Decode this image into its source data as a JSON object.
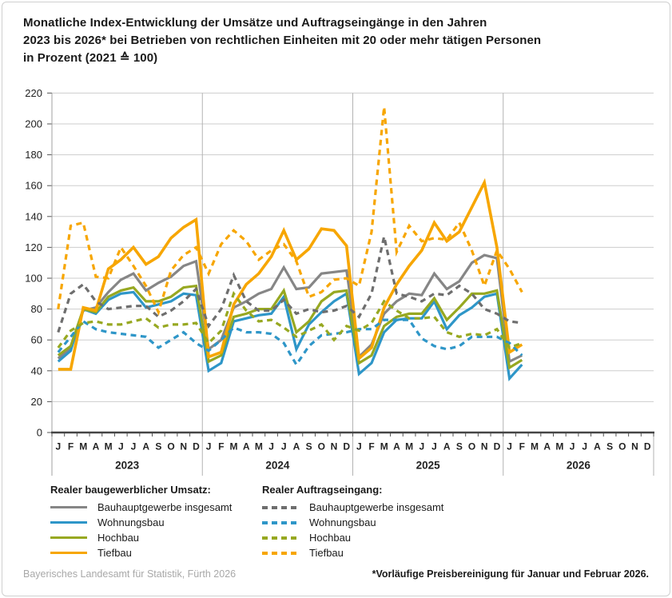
{
  "title": {
    "line1": "Monatliche Index-Entwicklung der Umsätze und Auftragseingänge in den Jahren",
    "line2": "2023 bis 2026* bei Betrieben von rechtlichen Einheiten mit 20 oder mehr tätigen Personen",
    "line3": "in Prozent (2021 ≙ 100)"
  },
  "legend": {
    "umsatz_header": "Realer baugewerblicher Umsatz:",
    "auftrag_header": "Realer Auftragseingang:",
    "items": [
      "Bauhauptgewerbe insgesamt",
      "Wohnungsbau",
      "Hochbau",
      "Tiefbau"
    ]
  },
  "footer": {
    "source": "Bayerisches Landesamt für Statistik, Fürth 2026",
    "footnote": "*Vorläufige Preisbereinigung für Januar und Februar 2026."
  },
  "chart_data": {
    "type": "line",
    "title": "Monatliche Index-Entwicklung der Umsätze und Auftragseingänge 2023 bis 2026, in Prozent (2021 ≙ 100)",
    "index_base": "2021 ≙ 100",
    "grid": "on",
    "y_axis": {
      "min": 0,
      "max": 220,
      "step": 20
    },
    "x_axis": {
      "month_letters": [
        "J",
        "F",
        "M",
        "A",
        "M",
        "J",
        "J",
        "A",
        "S",
        "O",
        "N",
        "D"
      ],
      "years": [
        "2023",
        "2024",
        "2025",
        "2026"
      ],
      "n_data_months": 38,
      "last_data_month": "Februar 2026"
    },
    "colors": {
      "gray": "#868686",
      "blue": "#2E96C8",
      "green": "#97A821",
      "orange": "#F7A600"
    },
    "series": [
      {
        "name": "Bauhauptgewerbe insgesamt",
        "group": "Realer baugewerblicher Umsatz",
        "style": "solid",
        "color": "#868686",
        "values": [
          48,
          55,
          79,
          81,
          91,
          99,
          103,
          92,
          97,
          101,
          108,
          111,
          54,
          60,
          81,
          85,
          90,
          93,
          107,
          93,
          94,
          103,
          104,
          105,
          49,
          57,
          77,
          85,
          90,
          89,
          103,
          93,
          98,
          110,
          115,
          113,
          46,
          50
        ]
      },
      {
        "name": "Wohnungsbau",
        "group": "Realer baugewerblicher Umsatz",
        "style": "solid",
        "color": "#2E96C8",
        "values": [
          46,
          53,
          80,
          77,
          86,
          90,
          91,
          81,
          83,
          85,
          90,
          89,
          40,
          45,
          72,
          74,
          76,
          77,
          88,
          54,
          70,
          78,
          85,
          90,
          38,
          45,
          65,
          73,
          74,
          74,
          85,
          67,
          76,
          81,
          88,
          90,
          35,
          44
        ]
      },
      {
        "name": "Hochbau",
        "group": "Realer baugewerblicher Umsatz",
        "style": "solid",
        "color": "#97A821",
        "values": [
          50,
          56,
          80,
          78,
          88,
          92,
          94,
          85,
          85,
          88,
          94,
          95,
          46,
          50,
          75,
          77,
          80,
          80,
          92,
          65,
          72,
          85,
          91,
          92,
          45,
          50,
          69,
          75,
          77,
          77,
          87,
          73,
          81,
          90,
          90,
          92,
          42,
          47
        ]
      },
      {
        "name": "Tiefbau",
        "group": "Realer baugewerblicher Umsatz",
        "style": "solid",
        "color": "#F7A600",
        "values": [
          41,
          41,
          81,
          79,
          106,
          112,
          120,
          109,
          114,
          126,
          133,
          138,
          49,
          52,
          83,
          96,
          103,
          114,
          131,
          112,
          119,
          132,
          131,
          121,
          48,
          55,
          81,
          96,
          108,
          118,
          136,
          124,
          130,
          146,
          162,
          120,
          52,
          57
        ]
      },
      {
        "name": "Bauhauptgewerbe insgesamt",
        "group": "Realer Auftragseingang",
        "style": "dashed",
        "color": "#6E6E6E",
        "values": [
          65,
          90,
          96,
          85,
          80,
          81,
          82,
          82,
          75,
          79,
          85,
          93,
          69,
          80,
          102,
          85,
          79,
          79,
          86,
          77,
          80,
          78,
          79,
          82,
          75,
          90,
          127,
          90,
          88,
          85,
          90,
          89,
          95,
          90,
          80,
          77,
          72,
          71
        ]
      },
      {
        "name": "Wohnungsbau",
        "group": "Realer Auftragseingang",
        "style": "dashed",
        "color": "#2E96C8",
        "values": [
          52,
          62,
          72,
          67,
          65,
          64,
          63,
          62,
          55,
          60,
          65,
          58,
          53,
          60,
          68,
          65,
          65,
          64,
          58,
          44,
          56,
          63,
          64,
          65,
          67,
          67,
          73,
          73,
          73,
          61,
          56,
          54,
          56,
          62,
          62,
          62,
          58,
          50
        ]
      },
      {
        "name": "Hochbau",
        "group": "Realer Auftragseingang",
        "style": "dashed",
        "color": "#97A821",
        "values": [
          55,
          66,
          71,
          72,
          70,
          70,
          72,
          74,
          68,
          70,
          70,
          71,
          58,
          66,
          90,
          79,
          72,
          73,
          68,
          62,
          66,
          70,
          60,
          69,
          66,
          71,
          85,
          79,
          74,
          74,
          75,
          65,
          62,
          64,
          63,
          67,
          55,
          58
        ]
      },
      {
        "name": "Tiefbau",
        "group": "Realer Auftragseingang",
        "style": "dashed",
        "color": "#F7A600",
        "values": [
          80,
          134,
          136,
          101,
          100,
          120,
          108,
          95,
          78,
          105,
          115,
          120,
          103,
          122,
          131,
          124,
          112,
          118,
          122,
          111,
          88,
          91,
          99,
          100,
          95,
          130,
          211,
          117,
          134,
          124,
          126,
          125,
          136,
          118,
          95,
          118,
          106,
          91
        ]
      }
    ]
  }
}
